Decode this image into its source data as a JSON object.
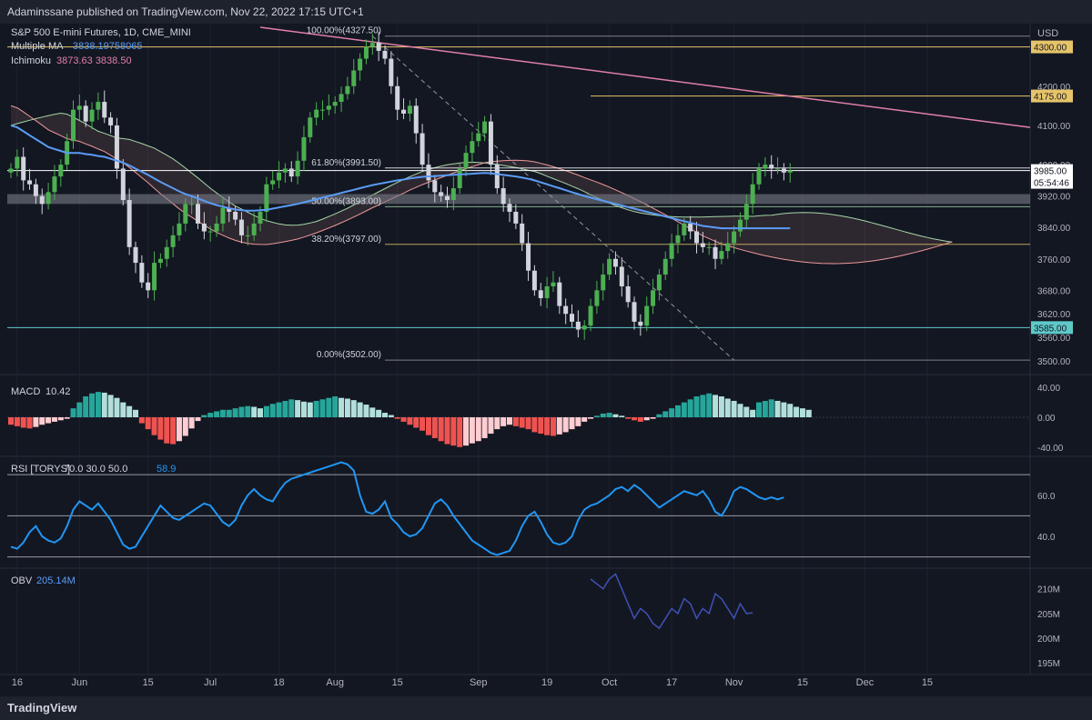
{
  "header": {
    "publisher": "Adaminssane published on TradingView.com, Nov 22, 2022 17:15 UTC+1"
  },
  "footer": {
    "brand": "TradingView"
  },
  "colors": {
    "background": "#131722",
    "up": "#4caf50",
    "down": "#d1d4dc",
    "ma": "#5b9cf6",
    "cloud_up": "#a5d6a7",
    "cloud_down": "#ef9a9a",
    "trendline": "#e07fa8",
    "level": "#e6c46a",
    "support": "#5fc9c9",
    "macd_up": "#26a69a",
    "macd_up_light": "#b2dfdb",
    "macd_down": "#ef5350",
    "macd_down_light": "#ffcdd2",
    "rsi": "#2196f3",
    "obv": "#3f51b5"
  },
  "chart_data": [
    {
      "type": "candlestick",
      "title": "S&P 500 E-mini Futures, 1D, CME_MINI",
      "indicators": [
        {
          "name": "Multiple MA",
          "value": "3838.19758065"
        },
        {
          "name": "Ichimoku",
          "value": "3873.63 3838.50"
        }
      ],
      "currency": "USD",
      "ylim": [
        3470,
        4350
      ],
      "y_ticks": [
        "4200.00",
        "4100.00",
        "4000.00",
        "3920.00",
        "3840.00",
        "3760.00",
        "3680.00",
        "3620.00",
        "3560.00",
        "3500.00"
      ],
      "y_tick_values": [
        4200,
        4100,
        4000,
        3920,
        3840,
        3760,
        3680,
        3620,
        3560,
        3500
      ],
      "x_ticks": [
        "16",
        "Jun",
        "15",
        "Jul",
        "18",
        "Aug",
        "15",
        "Sep",
        "19",
        "Oct",
        "17",
        "Nov",
        "15",
        "Dec",
        "15"
      ],
      "x_tick_index": [
        1,
        11,
        22,
        32,
        43,
        52,
        62,
        75,
        86,
        96,
        106,
        116,
        127,
        137,
        147
      ],
      "price_labels": [
        {
          "text": "4300.00",
          "value": 4300
        },
        {
          "text": "4175.00",
          "value": 4175
        },
        {
          "text": "3985.00",
          "value": 3985
        },
        {
          "text": "05:54:46",
          "value": 3955
        },
        {
          "text": "3585.00",
          "value": 3585
        }
      ],
      "fibonacci": [
        {
          "label": "100.00%(4327.50)",
          "value": 4327.5
        },
        {
          "label": "61.80%(3991.50)",
          "value": 3991.5
        },
        {
          "label": "50.00%(3893.00)",
          "value": 3893
        },
        {
          "label": "38.20%(3797.00)",
          "value": 3797
        },
        {
          "label": "0.00%(3502.00)",
          "value": 3502
        }
      ],
      "closes": [
        3990,
        4020,
        3960,
        3950,
        3920,
        3900,
        3930,
        3970,
        4000,
        4060,
        4140,
        4150,
        4110,
        4140,
        4160,
        4120,
        4100,
        3990,
        3910,
        3790,
        3750,
        3700,
        3680,
        3750,
        3760,
        3790,
        3820,
        3850,
        3900,
        3900,
        3850,
        3830,
        3830,
        3850,
        3890,
        3880,
        3860,
        3820,
        3820,
        3850,
        3880,
        3950,
        3960,
        3980,
        3990,
        3970,
        4010,
        4070,
        4120,
        4140,
        4140,
        4150,
        4160,
        4180,
        4200,
        4240,
        4270,
        4300,
        4310,
        4290,
        4270,
        4200,
        4140,
        4130,
        4150,
        4080,
        4000,
        3960,
        3930,
        3920,
        3910,
        3940,
        3990,
        4030,
        4060,
        4080,
        4110,
        4000,
        3940,
        3900,
        3880,
        3850,
        3800,
        3730,
        3680,
        3660,
        3690,
        3700,
        3640,
        3620,
        3600,
        3580,
        3590,
        3640,
        3680,
        3720,
        3760,
        3740,
        3690,
        3650,
        3600,
        3590,
        3640,
        3680,
        3720,
        3760,
        3800,
        3820,
        3850,
        3830,
        3800,
        3790,
        3790,
        3760,
        3780,
        3800,
        3830,
        3860,
        3900,
        3950,
        3990,
        4000,
        3990,
        3990,
        3980,
        3985
      ],
      "ma": [
        4100,
        4095,
        4085,
        4075,
        4065,
        4055,
        4045,
        4040,
        4035,
        4030,
        4030,
        4030,
        4027,
        4025,
        4022,
        4020,
        4015,
        4010,
        4005,
        3998,
        3990,
        3982,
        3974,
        3965,
        3956,
        3948,
        3940,
        3932,
        3925,
        3920,
        3914,
        3908,
        3902,
        3897,
        3893,
        3889,
        3886,
        3884,
        3883,
        3883,
        3884,
        3885,
        3888,
        3891,
        3894,
        3897,
        3900,
        3904,
        3908,
        3912,
        3916,
        3920,
        3924,
        3928,
        3932,
        3936,
        3940,
        3944,
        3948,
        3951,
        3954,
        3957,
        3960,
        3962,
        3965,
        3967,
        3969,
        3970,
        3971,
        3972,
        3973,
        3974,
        3975,
        3976,
        3977,
        3978,
        3979,
        3978,
        3976,
        3974,
        3972,
        3970,
        3967,
        3964,
        3960,
        3955,
        3950,
        3945,
        3940,
        3935,
        3930,
        3925,
        3920,
        3916,
        3912,
        3908,
        3904,
        3900,
        3896,
        3892,
        3888,
        3884,
        3880,
        3876,
        3872,
        3868,
        3864,
        3860,
        3856,
        3852,
        3848,
        3844,
        3842,
        3840,
        3838,
        3838,
        3838,
        3838,
        3838,
        3838,
        3838,
        3838,
        3838,
        3838,
        3838,
        3838
      ]
    },
    {
      "type": "histogram",
      "name": "MACD",
      "value_label": "10.42",
      "ylim": [
        -50,
        50
      ],
      "y_ticks": [
        "40.00",
        "0.00",
        "-40.00"
      ],
      "y_tick_values": [
        40,
        0,
        -40
      ],
      "values": [
        -10,
        -12,
        -14,
        -15,
        -13,
        -10,
        -8,
        -6,
        -4,
        -2,
        12,
        20,
        28,
        32,
        34,
        33,
        30,
        26,
        20,
        15,
        10,
        -8,
        -16,
        -24,
        -30,
        -35,
        -36,
        -32,
        -25,
        -15,
        -5,
        3,
        6,
        8,
        10,
        10,
        12,
        14,
        15,
        14,
        12,
        15,
        18,
        20,
        22,
        24,
        23,
        21,
        20,
        22,
        24,
        26,
        28,
        26,
        25,
        23,
        20,
        17,
        13,
        10,
        6,
        3,
        -2,
        -6,
        -10,
        -14,
        -18,
        -24,
        -28,
        -32,
        -36,
        -38,
        -40,
        -38,
        -35,
        -32,
        -28,
        -22,
        -16,
        -12,
        -10,
        -12,
        -14,
        -16,
        -20,
        -22,
        -24,
        -25,
        -23,
        -20,
        -16,
        -12,
        -6,
        -2,
        2,
        5,
        6,
        4,
        2,
        -2,
        -4,
        -6,
        -4,
        -2,
        4,
        8,
        12,
        16,
        20,
        24,
        28,
        30,
        32,
        30,
        28,
        25,
        22,
        18,
        14,
        10,
        20,
        22,
        24,
        22,
        20,
        18,
        14,
        12,
        10
      ]
    },
    {
      "type": "line",
      "name": "RSI [TORYS]",
      "params": "70.0 30.0 50.0",
      "value_label": "58.9",
      "ylim": [
        25,
        78
      ],
      "y_ticks": [
        "60.0",
        "40.0"
      ],
      "y_tick_values": [
        60,
        40
      ],
      "bands": [
        70,
        50,
        30
      ],
      "values": [
        35,
        34,
        37,
        42,
        45,
        40,
        38,
        37,
        39,
        45,
        53,
        57,
        55,
        53,
        56,
        52,
        48,
        42,
        36,
        34,
        35,
        40,
        45,
        50,
        55,
        52,
        49,
        48,
        50,
        52,
        54,
        56,
        55,
        51,
        47,
        45,
        48,
        55,
        60,
        63,
        60,
        58,
        57,
        62,
        66,
        68,
        69,
        70,
        71,
        72,
        73,
        74,
        75,
        76,
        75,
        72,
        60,
        52,
        51,
        53,
        57,
        49,
        46,
        42,
        40,
        41,
        44,
        50,
        56,
        58,
        55,
        50,
        46,
        42,
        38,
        36,
        34,
        32,
        31,
        32,
        33,
        38,
        45,
        50,
        52,
        47,
        41,
        37,
        36,
        37,
        40,
        48,
        53,
        55,
        56,
        58,
        60,
        63,
        64,
        62,
        65,
        63,
        60,
        57,
        54,
        56,
        58,
        60,
        62,
        61,
        60,
        62,
        58,
        52,
        50,
        55,
        62,
        64,
        63,
        61,
        59,
        58,
        59,
        58,
        58.9
      ]
    },
    {
      "type": "line",
      "name": "OBV",
      "value_label": "205.14M",
      "ylim": [
        193,
        214
      ],
      "y_ticks": [
        "210M",
        "205M",
        "200M",
        "195M"
      ],
      "y_tick_values": [
        210,
        205,
        200,
        195
      ],
      "start_index": 93,
      "values": [
        212,
        211,
        210,
        212,
        213,
        210,
        207,
        204,
        206,
        205,
        203,
        202,
        204,
        206,
        205,
        208,
        207,
        204,
        206,
        205,
        209,
        208,
        206,
        204,
        207,
        205,
        205.14
      ]
    }
  ]
}
